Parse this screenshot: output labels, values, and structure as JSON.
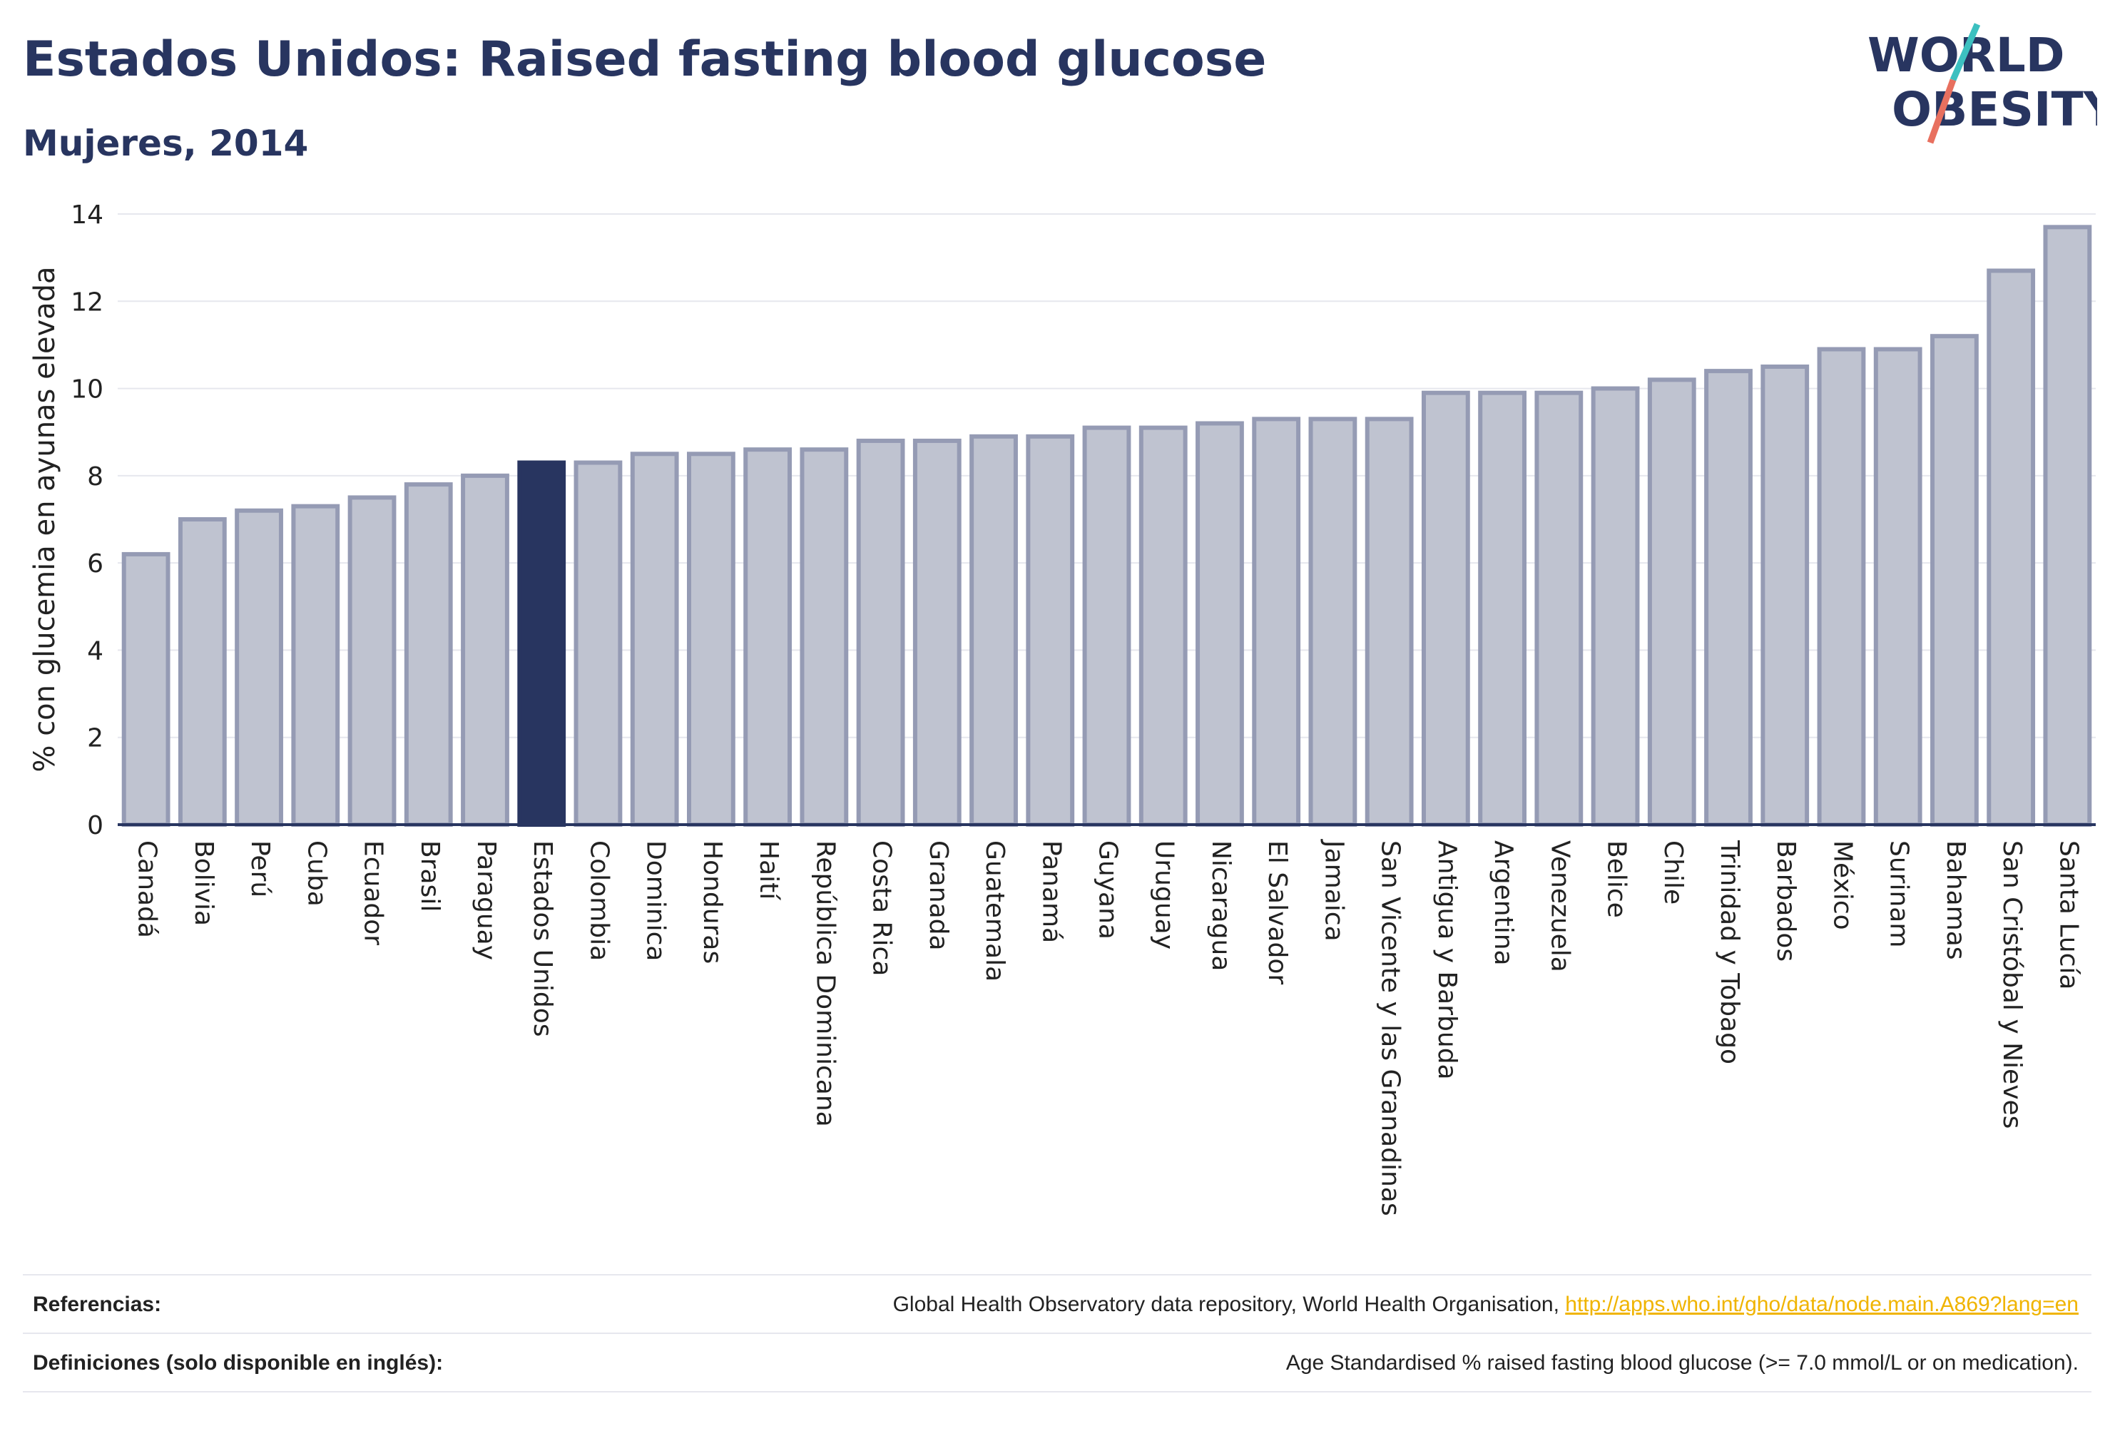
{
  "header": {
    "title": "Estados Unidos: Raised fasting blood glucose",
    "subtitle": "Mujeres, 2014"
  },
  "logo": {
    "line1": "WORLD",
    "line2": "OBESITY",
    "colors": {
      "text": "#283560",
      "slash_top": "#3cc0c0",
      "slash_bottom": "#e8705f"
    }
  },
  "chart_data": {
    "type": "bar",
    "title": "",
    "xlabel": "",
    "ylabel": "% con glucemia en ayunas elevada",
    "ylim": [
      0,
      14
    ],
    "yticks": [
      0,
      2,
      4,
      6,
      8,
      10,
      12,
      14
    ],
    "grid": true,
    "highlight": "Estados Unidos",
    "colors": {
      "bar": "#bfc3d0",
      "bar_edge": "#959bb4",
      "highlight": "#283560"
    },
    "categories": [
      "Canadá",
      "Bolivia",
      "Perú",
      "Cuba",
      "Ecuador",
      "Brasil",
      "Paraguay",
      "Estados Unidos",
      "Colombia",
      "Dominica",
      "Honduras",
      "Haití",
      "República Dominicana",
      "Costa Rica",
      "Granada",
      "Guatemala",
      "Panamá",
      "Guyana",
      "Uruguay",
      "Nicaragua",
      "El Salvador",
      "Jamaica",
      "San Vicente y las Granadinas",
      "Antigua y Barbuda",
      "Argentina",
      "Venezuela",
      "Belice",
      "Chile",
      "Trinidad y Tobago",
      "Barbados",
      "México",
      "Surinam",
      "Bahamas",
      "San Cristóbal y Nieves",
      "Santa Lucía"
    ],
    "values": [
      6.2,
      7.0,
      7.2,
      7.3,
      7.5,
      7.8,
      8.0,
      8.3,
      8.3,
      8.5,
      8.5,
      8.6,
      8.6,
      8.8,
      8.8,
      8.9,
      8.9,
      9.1,
      9.1,
      9.2,
      9.3,
      9.3,
      9.3,
      9.9,
      9.9,
      9.9,
      10.0,
      10.2,
      10.4,
      10.5,
      10.9,
      10.9,
      11.2,
      12.7,
      13.7
    ]
  },
  "footer": {
    "references_label": "Referencias:",
    "references_text": "Global Health Observatory data repository, World Health Organisation, ",
    "references_link": "http://apps.who.int/gho/data/node.main.A869?lang=en",
    "definitions_label": "Definiciones (solo disponible en inglés):",
    "definitions_text": "Age Standardised % raised fasting blood glucose (>= 7.0 mmol/L or on medication)."
  }
}
